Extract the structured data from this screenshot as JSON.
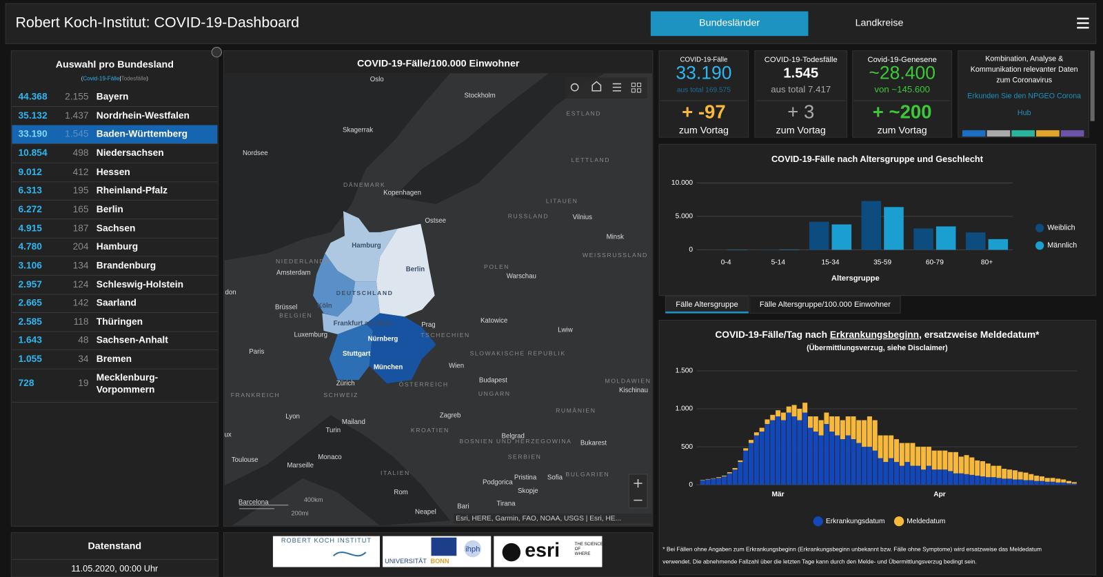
{
  "header": {
    "title": "Robert Koch-Institut: COVID-19-Dashboard",
    "tabs": [
      "Bundesländer",
      "Landkreise"
    ],
    "active_tab": 0
  },
  "list": {
    "title": "Auswahl pro Bundesland",
    "subtitle_parts": [
      "(",
      "Covid-19-Fälle",
      "|",
      "Todesfälle",
      ")"
    ],
    "selected": 2,
    "rows": [
      [
        "44.368",
        "2.155",
        "Bayern"
      ],
      [
        "35.132",
        "1.437",
        "Nordrhein-Westfalen"
      ],
      [
        "33.190",
        "1.545",
        "Baden-Württemberg"
      ],
      [
        "10.854",
        "498",
        "Niedersachsen"
      ],
      [
        "9.012",
        "412",
        "Hessen"
      ],
      [
        "6.313",
        "195",
        "Rheinland-Pfalz"
      ],
      [
        "6.272",
        "165",
        "Berlin"
      ],
      [
        "4.915",
        "187",
        "Sachsen"
      ],
      [
        "4.780",
        "204",
        "Hamburg"
      ],
      [
        "3.106",
        "134",
        "Brandenburg"
      ],
      [
        "2.957",
        "124",
        "Schleswig-Holstein"
      ],
      [
        "2.665",
        "142",
        "Saarland"
      ],
      [
        "2.585",
        "118",
        "Thüringen"
      ],
      [
        "1.643",
        "48",
        "Sachsen-Anhalt"
      ],
      [
        "1.055",
        "34",
        "Bremen"
      ],
      [
        "728",
        "19",
        "Mecklenburg-Vorpommern"
      ]
    ]
  },
  "map": {
    "title": "COVID-19-Fälle/100.000 Einwohner",
    "labels": [
      "Oslo",
      "Stockholm",
      "Skagerrak",
      "ESTLAND",
      "Nordsee",
      "LETTLAND",
      "DÄNEMARK",
      "Kopenhagen",
      "LITAUEN",
      "Ostsee",
      "RUSSLAND",
      "Vilnius",
      "Minsk",
      "Hamburg",
      "Berlin",
      "NIEDERLANDE",
      "Amsterdam",
      "POLEN",
      "Warschau",
      "WEISSRUSSLAND",
      "DEUTSCHLAND",
      "Köln",
      "Brüssel",
      "BELGIEN",
      "Frankfurt am Main",
      "Luxemburg",
      "Prag",
      "Katowice",
      "Lwiw",
      "TSCHECHIEN",
      "Nürnberg",
      "Stuttgart",
      "Paris",
      "SLOWAKISCHE REPUBLIK",
      "München",
      "Wien",
      "Zürich",
      "ÖSTERREICH",
      "Budapest",
      "MOLDAWIEN",
      "Kischinau",
      "SCHWEIZ",
      "UNGARN",
      "FRANKREICH",
      "Lyon",
      "Mailand",
      "Turin",
      "Zagreb",
      "KROATIEN",
      "RUMÄNIEN",
      "BOSNIEN UND HERZEGOWINA",
      "Belgrad",
      "Bukarest",
      "SERBIEN",
      "Toulouse",
      "Monaco",
      "Marseille",
      "ITALIEN",
      "Podgorica",
      "Pristina",
      "Sofia",
      "BULGARIEN",
      "Skopje",
      "Rom",
      "Barcelona",
      "Tirana",
      "Bari",
      "Neapel",
      "don",
      "ux"
    ],
    "scale": [
      "400km",
      "200mi"
    ],
    "attribution": "Esri, HERE, Garmin, FAO, NOAA, USGS | Esri, HE..."
  },
  "kpis": [
    {
      "title": "COVID-19-Fälle",
      "value": "33.190",
      "sub": "aus total 169.575",
      "change": "+ -97",
      "change_label": "zum Vortag"
    },
    {
      "title": "COVID-19-Todesfälle",
      "value": "1.545",
      "sub": "aus total 7.417",
      "change": "+ 3",
      "change_label": "zum Vortag"
    },
    {
      "title": "Covid-19-Genesene",
      "value": "~28.400",
      "sub": "von ~145.600",
      "change": "+ ~200",
      "change_label": "zum Vortag"
    }
  ],
  "info_card": {
    "title_lines": [
      "Kombination, Analyse &",
      "Kommunikation relevanter Daten",
      "zum Coronavirus"
    ],
    "link_lines": [
      "Erkunden Sie den NPGEO Corona",
      "Hub"
    ]
  },
  "age_chart": {
    "type": "bar",
    "title": "COVID-19-Fälle nach Altersgruppe und Geschlecht",
    "x_label": "Altersgruppe",
    "categories": [
      "0-4",
      "5-14",
      "15-34",
      "35-59",
      "60-79",
      "80+"
    ],
    "series": [
      {
        "name": "Weiblich",
        "color": "#0d4c7e",
        "values": [
          20,
          40,
          4200,
          7300,
          3200,
          2600
        ]
      },
      {
        "name": "Männlich",
        "color": "#1b9fd0",
        "values": [
          40,
          50,
          3800,
          6400,
          3500,
          1600
        ]
      }
    ],
    "ylim": [
      0,
      10000
    ],
    "yticks": [
      0,
      {
        "value": 5000,
        "label": "5.000"
      },
      {
        "value": 10000,
        "label": "10.000"
      }
    ],
    "grid": true,
    "legend": "right"
  },
  "age_tabs": [
    "Fälle Altersgruppe",
    "Fälle Altersgruppe/100.000 Einwohner"
  ],
  "epi_chart": {
    "type": "stacked-bar",
    "title_parts": [
      "COVID-19-Fälle/Tag nach ",
      "Erkrankungsbeginn",
      ", ersatzweise Meldedatum*"
    ],
    "subtitle": "(Übermittlungsverzug, siehe Disclaimer)",
    "categories": [
      null,
      null,
      null,
      null,
      null,
      null,
      null,
      null,
      null,
      null,
      null,
      null,
      null,
      null,
      "Mär",
      null,
      null,
      null,
      null,
      null,
      null,
      null,
      null,
      null,
      null,
      null,
      null,
      null,
      null,
      null,
      null,
      null,
      null,
      null,
      null,
      null,
      null,
      null,
      null,
      null,
      null,
      null,
      null,
      null,
      "Apr",
      null,
      null,
      null,
      null,
      null,
      null,
      null,
      null,
      null,
      null,
      null,
      null,
      null,
      null,
      null,
      null,
      null,
      null,
      null,
      null,
      null,
      null,
      null,
      null,
      null
    ],
    "series": [
      {
        "name": "Erkrankungsdatum",
        "color": "#1447b8",
        "values": [
          60,
          70,
          80,
          90,
          110,
          150,
          200,
          300,
          450,
          550,
          650,
          700,
          800,
          850,
          900,
          850,
          950,
          900,
          850,
          950,
          750,
          700,
          650,
          800,
          700,
          650,
          600,
          650,
          600,
          550,
          500,
          500,
          450,
          350,
          300,
          350,
          300,
          250,
          300,
          250,
          250,
          200,
          250,
          200,
          200,
          200,
          180,
          150,
          150,
          140,
          130,
          120,
          110,
          100,
          100,
          90,
          80,
          80,
          70,
          70,
          60,
          60,
          50,
          50,
          40,
          40,
          30,
          30,
          20,
          15
        ]
      },
      {
        "name": "Meldedatum",
        "color": "#f6b93b",
        "values": [
          5,
          5,
          5,
          10,
          10,
          15,
          20,
          20,
          30,
          40,
          40,
          50,
          60,
          70,
          80,
          100,
          80,
          150,
          150,
          130,
          150,
          200,
          200,
          150,
          200,
          250,
          250,
          250,
          300,
          300,
          350,
          400,
          400,
          300,
          350,
          300,
          300,
          300,
          250,
          300,
          250,
          300,
          250,
          250,
          250,
          250,
          250,
          280,
          220,
          250,
          230,
          200,
          200,
          180,
          150,
          160,
          130,
          120,
          120,
          100,
          100,
          80,
          70,
          60,
          50,
          50,
          50,
          40,
          30,
          20
        ]
      }
    ],
    "ylim": [
      0,
      1500
    ],
    "yticks": [
      0,
      500,
      {
        "value": 1000,
        "label": "1.000"
      },
      {
        "value": 1500,
        "label": "1.500"
      }
    ],
    "grid": true,
    "legend": "bottom",
    "footnote_lines": [
      "* Bei Fällen ohne Angaben zum Erkrankungsbeginn (Erkrankungsbeginn unbekannt bzw. Fälle ohne Symptome) wird ersatzweise das Meldedatum",
      "verwendet. Die abnehmende Fallzahl über die letzten Tage kann durch den Melde- und Übermittlungsverzug bedingt sein."
    ]
  },
  "datenstand": {
    "title": "Datenstand",
    "value": "11.05.2020, 00:00 Uhr"
  },
  "logos": {
    "rki": "ROBERT KOCH INSTITUT",
    "uni": "UNIVERSITÄT",
    "bonn": "BONN",
    "ihph": "ihph",
    "esri": "esri",
    "esri_tag": "THE SCIENCE OF WHERE"
  }
}
